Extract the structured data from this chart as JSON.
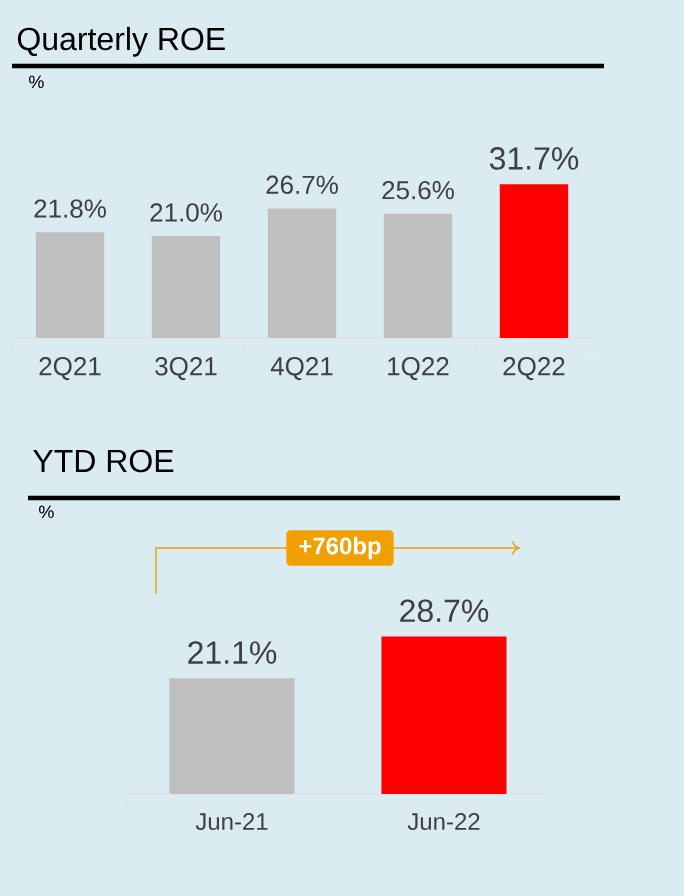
{
  "chart_data": [
    {
      "type": "bar",
      "title": "Quarterly ROE",
      "ylabel": "%",
      "categories": [
        "2Q21",
        "3Q21",
        "4Q21",
        "1Q22",
        "2Q22"
      ],
      "values": [
        21.8,
        21.0,
        26.7,
        25.6,
        31.7
      ],
      "colors": [
        "#bfbfbf",
        "#bfbfbf",
        "#bfbfbf",
        "#bfbfbf",
        "#ff0000"
      ],
      "value_labels": [
        "21.8%",
        "21.0%",
        "26.7%",
        "25.6%",
        "31.7%"
      ]
    },
    {
      "type": "bar",
      "title": "YTD ROE",
      "ylabel": "%",
      "categories": [
        "Jun-21",
        "Jun-22"
      ],
      "values": [
        21.1,
        28.7
      ],
      "colors": [
        "#bfbfbf",
        "#ff0000"
      ],
      "value_labels": [
        "21.1%",
        "28.7%"
      ],
      "annotations": [
        "+760bp"
      ]
    }
  ]
}
